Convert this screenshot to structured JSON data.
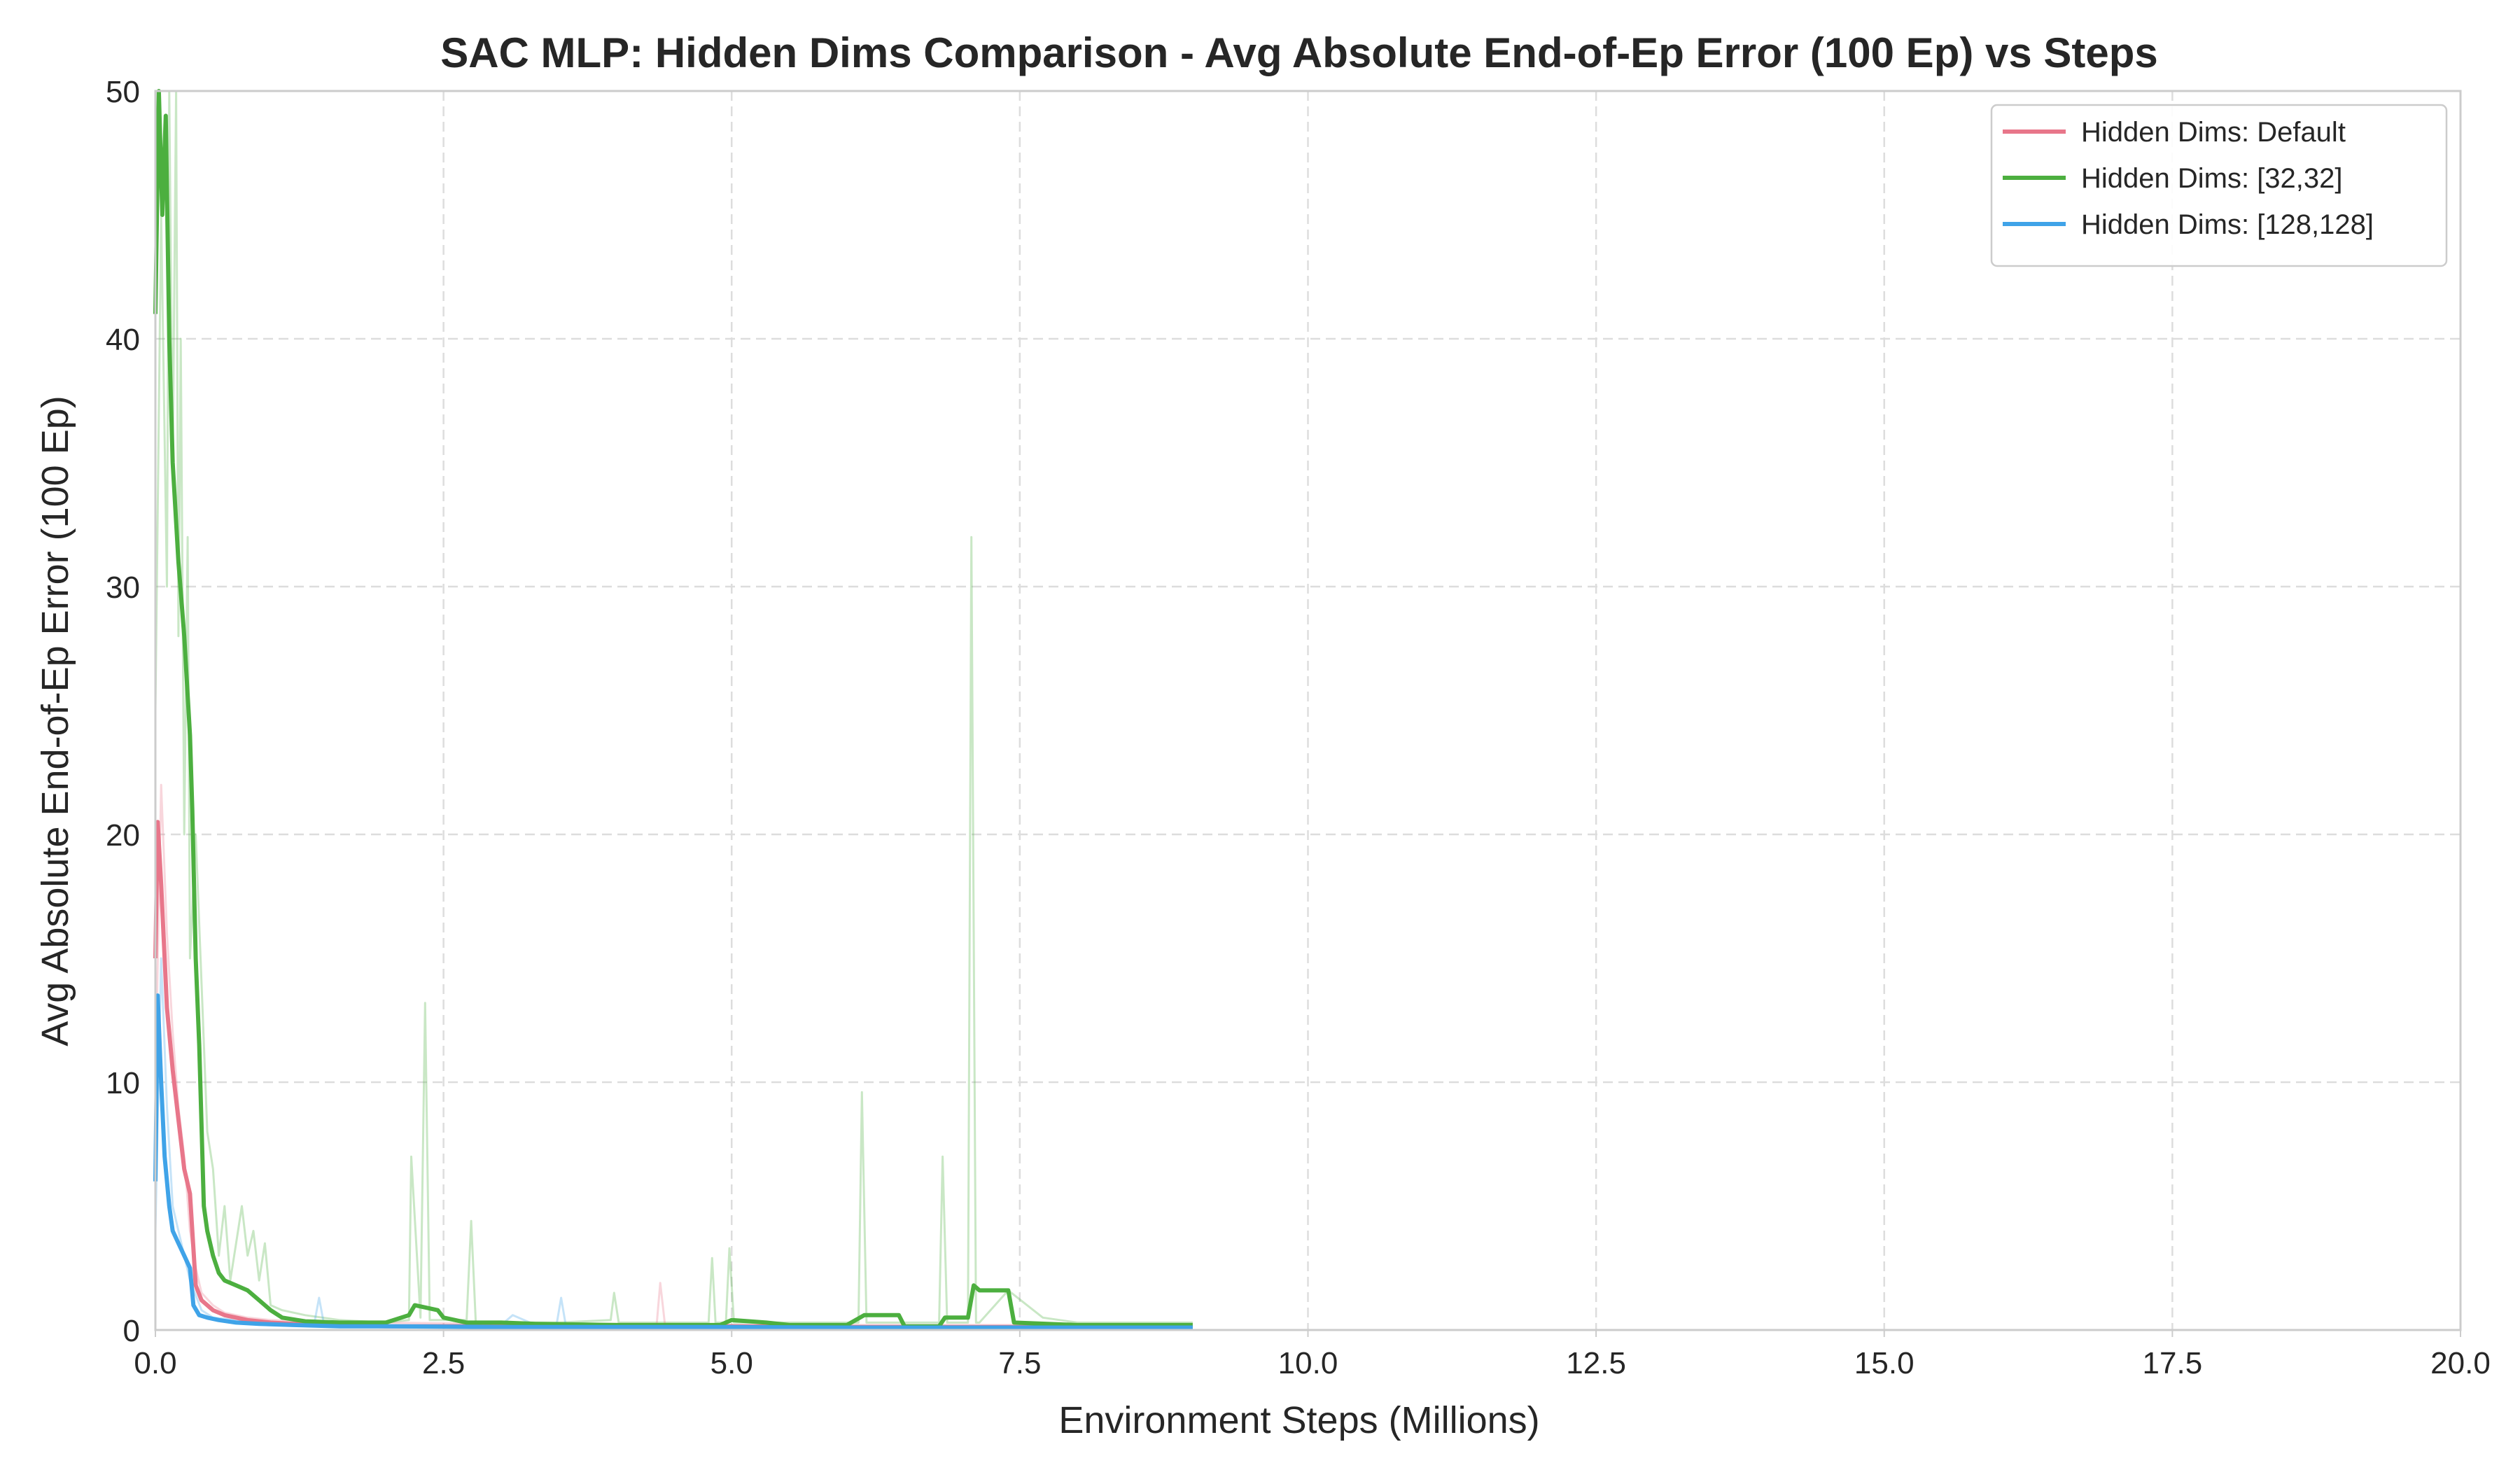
{
  "chart_data": {
    "type": "line",
    "title": "SAC MLP: Hidden Dims Comparison - Avg Absolute End-of-Ep Error (100 Ep) vs Steps",
    "xlabel": "Environment Steps (Millions)",
    "ylabel": "Avg Absolute End-of-Ep Error (100 Ep)",
    "xlim": [
      0,
      20
    ],
    "ylim": [
      0,
      50
    ],
    "xticks": [
      0,
      2.5,
      5,
      7.5,
      10,
      12.5,
      15,
      17.5,
      20
    ],
    "xtick_labels": [
      "0.0",
      "2.5",
      "5.0",
      "7.5",
      "10.0",
      "12.5",
      "15.0",
      "17.5",
      "20.0"
    ],
    "yticks": [
      0,
      10,
      20,
      30,
      40,
      50
    ],
    "ytick_labels": [
      "0",
      "10",
      "20",
      "30",
      "40",
      "50"
    ],
    "grid": true,
    "legend_position": "top-right",
    "series": [
      {
        "name": "Hidden Dims: Default",
        "color": "#e8768a",
        "x": [
          0.0,
          0.02,
          0.05,
          0.08,
          0.1,
          0.15,
          0.2,
          0.25,
          0.3,
          0.35,
          0.4,
          0.5,
          0.6,
          0.8,
          1.0,
          1.2,
          1.5,
          2.0,
          3.0,
          4.0,
          5.0,
          6.0,
          7.0,
          8.0,
          9.0
        ],
        "y": [
          15,
          20.5,
          18,
          15,
          13,
          10.5,
          8.5,
          6.5,
          5.5,
          1.8,
          1.2,
          0.8,
          0.6,
          0.4,
          0.3,
          0.25,
          0.2,
          0.15,
          0.15,
          0.15,
          0.15,
          0.12,
          0.12,
          0.12,
          0.12
        ]
      },
      {
        "name": "Hidden Dims: [32,32]",
        "color": "#4caf3f",
        "x": [
          0.0,
          0.03,
          0.06,
          0.09,
          0.12,
          0.15,
          0.2,
          0.25,
          0.3,
          0.32,
          0.35,
          0.38,
          0.42,
          0.45,
          0.5,
          0.55,
          0.6,
          0.7,
          0.8,
          0.9,
          1.0,
          1.1,
          1.3,
          1.6,
          2.0,
          2.2,
          2.25,
          2.45,
          2.5,
          2.6,
          2.7,
          3.0,
          3.3,
          4.0,
          4.5,
          4.9,
          5.0,
          5.3,
          5.5,
          6.0,
          6.15,
          6.2,
          6.45,
          6.5,
          6.8,
          6.85,
          7.05,
          7.1,
          7.15,
          7.3,
          7.4,
          7.45,
          8.0,
          9.0
        ],
        "y": [
          41,
          50,
          45,
          49,
          40,
          35,
          31,
          28,
          24,
          21,
          15,
          11.5,
          5,
          4,
          3,
          2.3,
          2,
          1.8,
          1.6,
          1.2,
          0.8,
          0.5,
          0.35,
          0.3,
          0.3,
          0.6,
          1.0,
          0.8,
          0.5,
          0.4,
          0.3,
          0.3,
          0.25,
          0.2,
          0.2,
          0.2,
          0.4,
          0.3,
          0.2,
          0.2,
          0.6,
          0.6,
          0.6,
          0.15,
          0.15,
          0.5,
          0.5,
          1.8,
          1.6,
          1.6,
          1.6,
          0.3,
          0.2,
          0.2
        ]
      },
      {
        "name": "Hidden Dims: [128,128]",
        "color": "#3fa3e8",
        "x": [
          0.0,
          0.02,
          0.05,
          0.08,
          0.12,
          0.15,
          0.2,
          0.25,
          0.3,
          0.33,
          0.38,
          0.45,
          0.55,
          0.7,
          0.9,
          1.2,
          1.6,
          2.0,
          3.0,
          4.0,
          5.0,
          6.0,
          7.0,
          8.0,
          9.0
        ],
        "y": [
          6,
          13.5,
          10,
          7,
          5,
          4,
          3.5,
          3,
          2.5,
          1.0,
          0.6,
          0.5,
          0.4,
          0.3,
          0.25,
          0.2,
          0.15,
          0.15,
          0.12,
          0.12,
          0.12,
          0.1,
          0.1,
          0.1,
          0.1
        ]
      }
    ],
    "raw_series": [
      {
        "color": "#4caf3f",
        "x": [
          0.0,
          0.05,
          0.1,
          0.12,
          0.15,
          0.18,
          0.2,
          0.22,
          0.25,
          0.28,
          0.3,
          0.35,
          0.4,
          0.45,
          0.5,
          0.55,
          0.6,
          0.65,
          0.7,
          0.75,
          0.8,
          0.85,
          0.9,
          0.95,
          1.0,
          1.1,
          1.3,
          1.6,
          2.0,
          2.2,
          2.22,
          2.3,
          2.34,
          2.38,
          2.5,
          2.7,
          2.74,
          2.78,
          3.0,
          3.5,
          3.95,
          3.98,
          4.02,
          4.5,
          4.8,
          4.83,
          4.86,
          4.95,
          4.98,
          5.02,
          5.5,
          6.0,
          6.1,
          6.13,
          6.17,
          6.4,
          6.8,
          6.83,
          6.87,
          7.0,
          7.05,
          7.08,
          7.12,
          7.15,
          7.4,
          7.7,
          8.0,
          9.0
        ],
        "y": [
          25,
          45,
          30,
          52,
          35,
          50,
          28,
          40,
          20,
          32,
          15,
          20,
          14,
          8,
          6.5,
          3,
          5,
          2,
          3.5,
          5,
          3,
          4,
          2,
          3.5,
          1.0,
          0.8,
          0.6,
          0.4,
          0.3,
          0.4,
          7.0,
          0.5,
          13.2,
          0.4,
          0.4,
          0.4,
          4.4,
          0.3,
          0.3,
          0.3,
          0.4,
          1.5,
          0.3,
          0.3,
          0.3,
          2.9,
          0.3,
          0.3,
          3.3,
          0.3,
          0.3,
          0.3,
          0.3,
          9.6,
          0.3,
          0.3,
          0.3,
          7.0,
          0.3,
          0.3,
          0.3,
          32,
          0.3,
          0.3,
          1.6,
          0.5,
          0.3,
          0.3
        ]
      },
      {
        "color": "#e8768a",
        "x": [
          0.0,
          0.05,
          0.1,
          0.15,
          0.2,
          0.25,
          0.3,
          0.35,
          0.4,
          0.5,
          0.6,
          0.8,
          1.0,
          1.5,
          2.0,
          3.0,
          4.0,
          4.35,
          4.38,
          4.42,
          5.0,
          6.0,
          7.0,
          8.0,
          9.0
        ],
        "y": [
          10,
          22,
          16,
          12,
          9,
          7,
          4,
          2.5,
          1.5,
          1.0,
          0.7,
          0.5,
          0.4,
          0.3,
          0.3,
          0.25,
          0.25,
          0.25,
          1.9,
          0.25,
          0.2,
          0.2,
          0.2,
          0.2,
          0.2
        ]
      },
      {
        "color": "#3fa3e8",
        "x": [
          0.0,
          0.05,
          0.1,
          0.15,
          0.2,
          0.25,
          0.3,
          0.4,
          0.5,
          0.7,
          1.0,
          1.38,
          1.42,
          1.46,
          2.0,
          3.0,
          3.1,
          3.3,
          3.48,
          3.52,
          3.56,
          4.0,
          5.0,
          6.0,
          7.0,
          8.0,
          9.0
        ],
        "y": [
          4,
          15,
          9,
          5,
          4,
          3,
          2,
          0.8,
          0.5,
          0.4,
          0.3,
          0.3,
          1.3,
          0.3,
          0.2,
          0.2,
          0.6,
          0.2,
          0.2,
          1.3,
          0.2,
          0.15,
          0.15,
          0.15,
          0.15,
          0.15,
          0.15
        ]
      }
    ]
  }
}
